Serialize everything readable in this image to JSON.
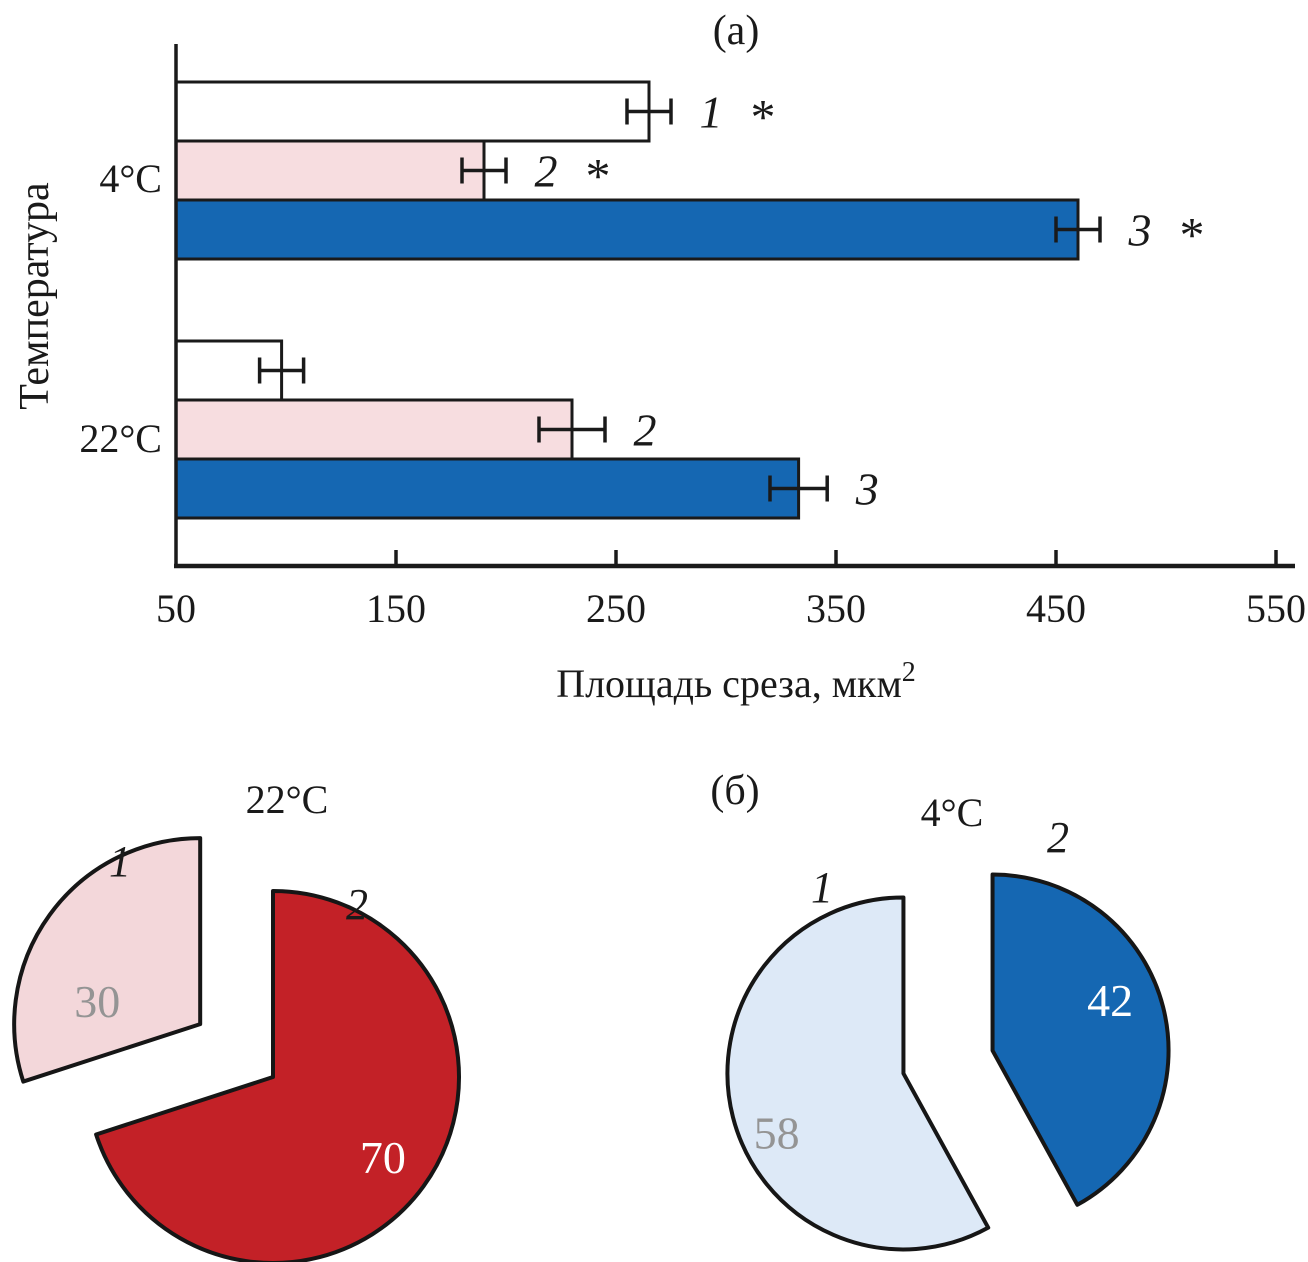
{
  "figure": {
    "panel_a_label": "(а)",
    "panel_b_label": "(б)",
    "star_symbol": "*",
    "colors": {
      "blue": "#1567b2",
      "pink_bar": "#f7dde0",
      "pink_pie": "#f3d7da",
      "red": "#c32127",
      "light_blue": "#dde9f7",
      "white": "#ffffff",
      "outline": "#1a1a1a",
      "gray_text": "#949494"
    }
  },
  "chart_data": [
    {
      "type": "bar",
      "orientation": "horizontal",
      "title": "(а)",
      "xlabel": {
        "text": "Площадь среза, мкм",
        "superscript": "2"
      },
      "ylabel": "Температура",
      "xlim": [
        50,
        550
      ],
      "xticks": [
        50,
        150,
        250,
        350,
        450,
        550
      ],
      "grid": false,
      "groups": [
        {
          "category": "4°C",
          "bars": [
            {
              "series": "1",
              "value": 265,
              "error": 10,
              "label": "1",
              "starred": true,
              "color": "#ffffff"
            },
            {
              "series": "2",
              "value": 190,
              "error": 10,
              "label": "2",
              "starred": true,
              "color": "#f7dde0"
            },
            {
              "series": "3",
              "value": 460,
              "error": 10,
              "label": "3",
              "starred": true,
              "color": "#1567b2"
            }
          ]
        },
        {
          "category": "22°C",
          "bars": [
            {
              "series": "1",
              "value": 98,
              "error": 10,
              "label": "",
              "starred": false,
              "color": "#ffffff"
            },
            {
              "series": "2",
              "value": 230,
              "error": 15,
              "label": "2",
              "starred": false,
              "color": "#f7dde0"
            },
            {
              "series": "3",
              "value": 333,
              "error": 13,
              "label": "3",
              "starred": false,
              "color": "#1567b2"
            }
          ]
        }
      ]
    },
    {
      "type": "pie",
      "title": "22°C",
      "legend_position": "none",
      "slices": [
        {
          "label": "1",
          "value": 30,
          "color": "#f3d7da",
          "text_color": "#949494",
          "exploded": true,
          "start_deg": 252,
          "label_angle": 282.6,
          "label_r": 0.567
        },
        {
          "label": "2",
          "value": 70,
          "color": "#c32127",
          "text_color": "#ffffff",
          "exploded": false,
          "start_deg": 0,
          "label_angle": 126,
          "label_r": 0.73
        }
      ]
    },
    {
      "type": "pie",
      "title": "4°C",
      "legend_position": "none",
      "slices": [
        {
          "label": "1",
          "value": 58,
          "color": "#dde9f7",
          "text_color": "#949494",
          "exploded": true,
          "start_deg": 151.2,
          "label_angle": 245,
          "label_r": 0.795
        },
        {
          "label": "2",
          "value": 42,
          "color": "#1567b2",
          "text_color": "#ffffff",
          "exploded": true,
          "start_deg": 0,
          "label_angle": 66.7,
          "label_r": 0.727
        }
      ]
    }
  ]
}
